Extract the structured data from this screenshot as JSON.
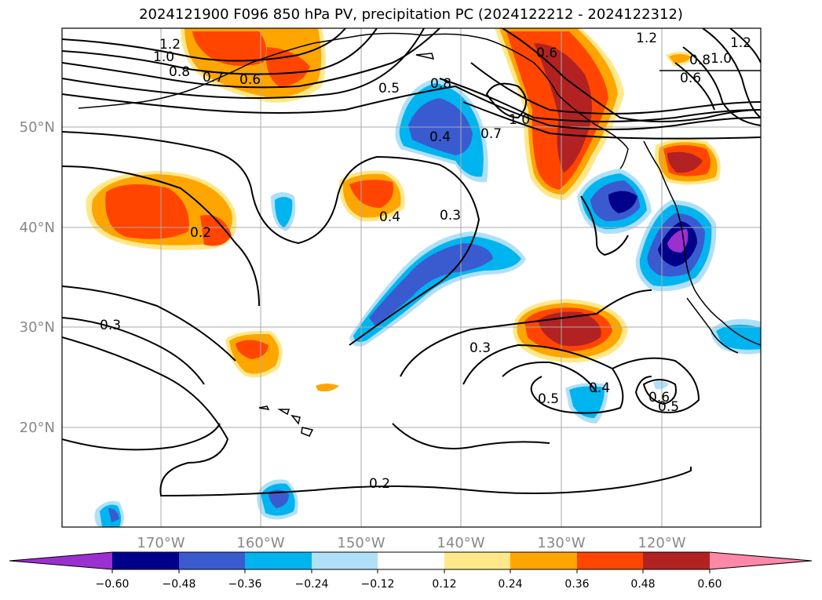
{
  "title": "2024121900 F096 850 hPa PV, precipitation PC (2024122212 - 2024122312)",
  "lon_labels": [
    "170°W",
    "160°W",
    "150°W",
    "140°W",
    "130°W",
    "120°W"
  ],
  "lat_labels": [
    "50°N",
    "40°N",
    "30°N",
    "20°N"
  ],
  "colorbar": {
    "ticks": [
      "−0.60",
      "−0.48",
      "−0.36",
      "−0.24",
      "−0.12",
      "0.12",
      "0.24",
      "0.36",
      "0.48",
      "0.60"
    ],
    "colors": [
      "#9b30d0",
      "#00008b",
      "#3a5bd0",
      "#00b4f0",
      "#b0e0f8",
      "#ffffff",
      "#ffe88a",
      "#ffa500",
      "#ff4500",
      "#b22222",
      "#ff88aa"
    ]
  },
  "contour_labels": [
    "1.2",
    "1.0",
    "0.8",
    "0.7",
    "0.6",
    "0.5",
    "0.8",
    "1.0",
    "0.7",
    "0.4",
    "0.6",
    "1.2",
    "0.8",
    "0.6",
    "1.0",
    "1.2",
    "0.4",
    "0.3",
    "0.2",
    "0.3",
    "0.3",
    "0.5",
    "0.4",
    "0.6",
    "0.5",
    "0.2"
  ],
  "colors": {
    "contour": "#000000",
    "grid": "#aaaaaa",
    "coast": "#000000",
    "positive_core": "#b22222",
    "negative_core": "#00008b"
  }
}
